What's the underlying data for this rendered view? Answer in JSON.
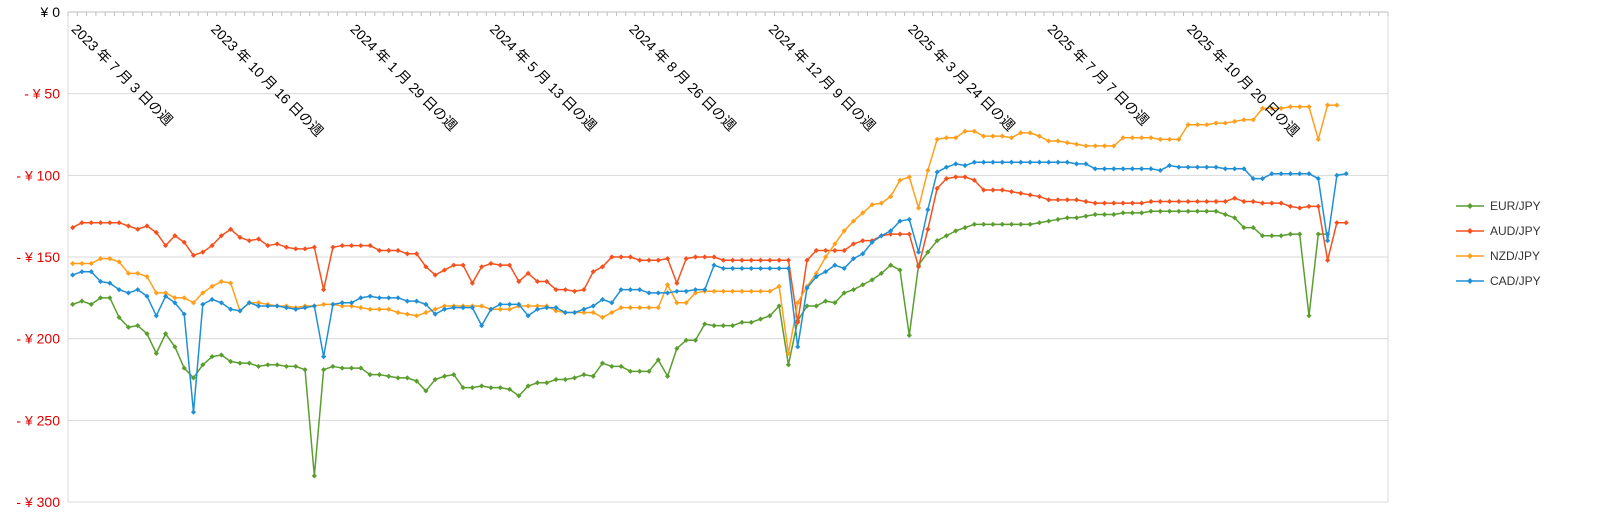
{
  "chart_data": {
    "type": "line",
    "title": "",
    "xlabel": "",
    "ylabel": "",
    "ylim": [
      -300,
      0
    ],
    "y_ticks": [
      {
        "value": 0,
        "label": "¥ 0",
        "color": "#000000"
      },
      {
        "value": -50,
        "label": "- ¥ 50",
        "color": "#e00000"
      },
      {
        "value": -100,
        "label": "- ¥ 100",
        "color": "#e00000"
      },
      {
        "value": -150,
        "label": "- ¥ 150",
        "color": "#e00000"
      },
      {
        "value": -200,
        "label": "- ¥ 200",
        "color": "#e00000"
      },
      {
        "value": -250,
        "label": "- ¥ 250",
        "color": "#e00000"
      },
      {
        "value": -300,
        "label": "- ¥ 300",
        "color": "#e00000"
      }
    ],
    "x_count": 142,
    "x_tick_labels": [
      {
        "index": 0,
        "label": "2023 年 7 月 3 日の週"
      },
      {
        "index": 15,
        "label": "2023 年 10 月 16 日の週"
      },
      {
        "index": 30,
        "label": "2024 年 1 月 29 日の週"
      },
      {
        "index": 45,
        "label": "2024 年 5 月 13 日の週"
      },
      {
        "index": 60,
        "label": "2024 年 8 月 26 日の週"
      },
      {
        "index": 75,
        "label": "2024 年 12 月 9 日の週"
      },
      {
        "index": 90,
        "label": "2025 年 3 月 24 日の週"
      },
      {
        "index": 105,
        "label": "2025 年 7 月 7 日の週"
      },
      {
        "index": 120,
        "label": "2025 年 10 月 20 日の週"
      }
    ],
    "grid": "horizontal",
    "legend_position": "right",
    "series": [
      {
        "name": "EUR/JPY",
        "color": "#5a9e2f",
        "values": [
          -179,
          -177,
          -179,
          -175,
          -175,
          -187,
          -193,
          -192,
          -197,
          -209,
          -197,
          -205,
          -218,
          -224,
          -216,
          -211,
          -210,
          -214,
          -215,
          -215,
          -217,
          -216,
          -216,
          -217,
          -217,
          -219,
          -284,
          -219,
          -217,
          -218,
          -218,
          -218,
          -222,
          -222,
          -223,
          -224,
          -224,
          -226,
          -232,
          -225,
          -223,
          -222,
          -230,
          -230,
          -229,
          -230,
          -230,
          -231,
          -235,
          -229,
          -227,
          -227,
          -225,
          -225,
          -224,
          -222,
          -223,
          -215,
          -217,
          -217,
          -220,
          -220,
          -220,
          -213,
          -223,
          -206,
          -201,
          -201,
          -191,
          -192,
          -192,
          -192,
          -190,
          -190,
          -188,
          -186,
          -180,
          -216,
          -189,
          -180,
          -180,
          -177,
          -178,
          -172,
          -170,
          -167,
          -164,
          -160,
          -155,
          -158,
          -198,
          -155,
          -147,
          -140,
          -137,
          -134,
          -132,
          -130,
          -130,
          -130,
          -130,
          -130,
          -130,
          -130,
          -129,
          -128,
          -127,
          -126,
          -126,
          -125,
          -124,
          -124,
          -124,
          -123,
          -123,
          -123,
          -122,
          -122,
          -122,
          -122,
          -122,
          -122,
          -122,
          -122,
          -124,
          -126,
          -132,
          -132,
          -137,
          -137,
          -137,
          -136,
          -136,
          -186,
          -136,
          -136
        ]
      },
      {
        "name": "AUD/JPY",
        "color": "#f4511e",
        "values": [
          -132,
          -129,
          -129,
          -129,
          -129,
          -129,
          -131,
          -133,
          -131,
          -135,
          -143,
          -137,
          -141,
          -149,
          -147,
          -143,
          -137,
          -133,
          -138,
          -140,
          -139,
          -143,
          -142,
          -144,
          -145,
          -145,
          -144,
          -170,
          -144,
          -143,
          -143,
          -143,
          -143,
          -146,
          -146,
          -146,
          -148,
          -148,
          -156,
          -161,
          -158,
          -155,
          -155,
          -166,
          -156,
          -154,
          -155,
          -155,
          -165,
          -160,
          -165,
          -165,
          -170,
          -170,
          -171,
          -170,
          -159,
          -156,
          -150,
          -150,
          -150,
          -152,
          -152,
          -152,
          -151,
          -166,
          -151,
          -150,
          -150,
          -150,
          -152,
          -152,
          -152,
          -152,
          -152,
          -152,
          -152,
          -152,
          -190,
          -152,
          -146,
          -146,
          -146,
          -146,
          -142,
          -140,
          -140,
          -137,
          -136,
          -136,
          -136,
          -156,
          -133,
          -108,
          -102,
          -101,
          -101,
          -103,
          -109,
          -109,
          -109,
          -110,
          -111,
          -112,
          -113,
          -115,
          -115,
          -115,
          -115,
          -116,
          -117,
          -117,
          -117,
          -117,
          -117,
          -117,
          -116,
          -116,
          -116,
          -116,
          -116,
          -116,
          -116,
          -116,
          -116,
          -114,
          -116,
          -116,
          -117,
          -117,
          -117,
          -119,
          -120,
          -119,
          -119,
          -152,
          -129,
          -129
        ]
      },
      {
        "name": "NZD/JPY",
        "color": "#ff9f1c",
        "values": [
          -154,
          -154,
          -154,
          -151,
          -151,
          -153,
          -160,
          -160,
          -162,
          -172,
          -172,
          -175,
          -175,
          -178,
          -172,
          -168,
          -165,
          -166,
          -183,
          -178,
          -178,
          -179,
          -180,
          -180,
          -181,
          -180,
          -180,
          -179,
          -179,
          -180,
          -180,
          -181,
          -182,
          -182,
          -182,
          -184,
          -185,
          -186,
          -184,
          -182,
          -180,
          -180,
          -180,
          -180,
          -180,
          -182,
          -182,
          -182,
          -180,
          -180,
          -180,
          -180,
          -183,
          -184,
          -184,
          -184,
          -184,
          -187,
          -184,
          -181,
          -181,
          -181,
          -181,
          -181,
          -167,
          -178,
          -178,
          -172,
          -171,
          -171,
          -171,
          -171,
          -171,
          -171,
          -171,
          -171,
          -168,
          -209,
          -178,
          -168,
          -160,
          -150,
          -142,
          -134,
          -128,
          -123,
          -118,
          -117,
          -113,
          -103,
          -101,
          -120,
          -97,
          -78,
          -77,
          -77,
          -73,
          -73,
          -76,
          -76,
          -76,
          -77,
          -74,
          -74,
          -76,
          -79,
          -79,
          -80,
          -81,
          -82,
          -82,
          -82,
          -82,
          -77,
          -77,
          -77,
          -77,
          -78,
          -78,
          -78,
          -69,
          -69,
          -69,
          -68,
          -68,
          -67,
          -66,
          -66,
          -59,
          -59,
          -59,
          -58,
          -58,
          -58,
          -78,
          -57,
          -57
        ]
      },
      {
        "name": "CAD/JPY",
        "color": "#1f8fd6",
        "values": [
          -161,
          -159,
          -159,
          -165,
          -166,
          -170,
          -172,
          -170,
          -174,
          -186,
          -174,
          -178,
          -185,
          -245,
          -179,
          -176,
          -178,
          -182,
          -183,
          -178,
          -180,
          -180,
          -180,
          -181,
          -182,
          -181,
          -180,
          -211,
          -179,
          -178,
          -178,
          -175,
          -174,
          -175,
          -175,
          -175,
          -177,
          -177,
          -179,
          -185,
          -182,
          -181,
          -181,
          -181,
          -192,
          -182,
          -179,
          -179,
          -179,
          -186,
          -182,
          -181,
          -181,
          -184,
          -184,
          -182,
          -180,
          -176,
          -178,
          -170,
          -170,
          -170,
          -172,
          -172,
          -172,
          -171,
          -171,
          -170,
          -170,
          -155,
          -157,
          -157,
          -157,
          -157,
          -157,
          -157,
          -157,
          -157,
          -205,
          -169,
          -162,
          -159,
          -155,
          -157,
          -151,
          -148,
          -141,
          -137,
          -134,
          -128,
          -127,
          -147,
          -121,
          -98,
          -95,
          -93,
          -94,
          -92,
          -92,
          -92,
          -92,
          -92,
          -92,
          -92,
          -92,
          -92,
          -92,
          -92,
          -93,
          -93,
          -96,
          -96,
          -96,
          -96,
          -96,
          -96,
          -96,
          -97,
          -94,
          -95,
          -95,
          -95,
          -95,
          -95,
          -96,
          -96,
          -96,
          -102,
          -102,
          -99,
          -99,
          -99,
          -99,
          -99,
          -102,
          -140,
          -100,
          -99
        ]
      }
    ]
  }
}
